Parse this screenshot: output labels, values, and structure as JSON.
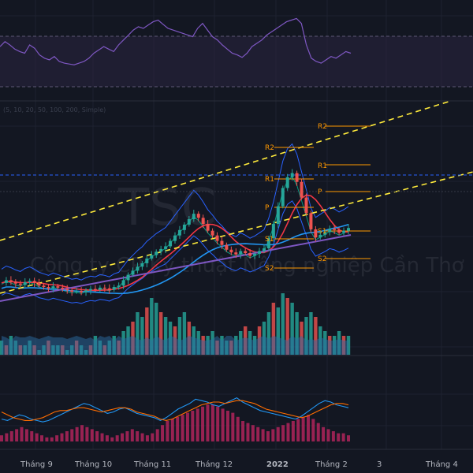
{
  "colors": {
    "background": "#131722",
    "grid": "#1e2230",
    "up": "#26a69a",
    "down": "#ef5350",
    "ma_blue": "#2962ff",
    "ma_teal": "#089981",
    "ma_red": "#f23645",
    "ma_purple": "#7e57c2",
    "trend": "#ffeb3b",
    "pivot": "#ff9800",
    "rsi": "#7e57c2",
    "rsi_band": "#2a2440",
    "macd_hist": "#b0245a",
    "macd_line": "#2196f3",
    "signal_line": "#ff6d00",
    "volume": "#2b6ea3"
  },
  "chart_data": {
    "type": "candlestick",
    "watermark": "TSC",
    "subtitle_watermark": "Công ty CP Kỹ thuật Nông nghiệp Cần Thơ",
    "ma_legend": "(5, 10, 20, 50, 100, 200, Simple)",
    "x_axis_labels": [
      "Tháng 9",
      "Tháng 10",
      "Tháng 11",
      "Tháng 12",
      "2022",
      "Tháng 2",
      "3",
      "Tháng 4"
    ],
    "pivot_labels": [
      "R2",
      "R1",
      "P",
      "S1",
      "S2",
      "R2",
      "R1",
      "P",
      "S1",
      "S2"
    ],
    "price_series": [
      10.2,
      10.6,
      10.4,
      10.1,
      9.9,
      10.3,
      10.5,
      10.2,
      9.8,
      9.6,
      9.4,
      9.7,
      9.5,
      9.3,
      9.1,
      8.9,
      9.0,
      8.8,
      9.1,
      9.3,
      9.2,
      9.5,
      9.4,
      9.2,
      9.6,
      9.8,
      10.6,
      11.4,
      12.0,
      12.6,
      13.1,
      13.8,
      14.3,
      14.8,
      15.2,
      15.6,
      16.4,
      17.2,
      18.0,
      18.8,
      19.6,
      20.4,
      19.8,
      18.9,
      17.9,
      17.2,
      16.4,
      15.8,
      15.1,
      14.7,
      14.4,
      14.9,
      14.6,
      14.2,
      14.5,
      14.9,
      15.3,
      16.8,
      18.9,
      21.5,
      24.2,
      25.8,
      26.4,
      25.1,
      22.8,
      20.5,
      18.1,
      16.9,
      17.3,
      17.7,
      18.2,
      18.0,
      17.6,
      17.9,
      18.3
    ],
    "volume_series": [
      3,
      2,
      4,
      3,
      2,
      2,
      3,
      2,
      1,
      2,
      3,
      2,
      2,
      2,
      1,
      2,
      3,
      2,
      1,
      2,
      4,
      3,
      2,
      3,
      4,
      3,
      5,
      6,
      7,
      9,
      8,
      10,
      12,
      11,
      9,
      8,
      7,
      6,
      8,
      9,
      7,
      6,
      5,
      4,
      4,
      5,
      3,
      4,
      3,
      3,
      4,
      5,
      6,
      5,
      4,
      6,
      7,
      9,
      11,
      10,
      13,
      12,
      11,
      9,
      7,
      8,
      9,
      8,
      6,
      5,
      4,
      4,
      5,
      4,
      4
    ],
    "rsi_series": [
      58,
      64,
      60,
      55,
      52,
      50,
      60,
      56,
      48,
      44,
      42,
      46,
      40,
      38,
      37,
      36,
      38,
      40,
      44,
      50,
      54,
      58,
      55,
      52,
      60,
      66,
      72,
      78,
      82,
      80,
      84,
      88,
      90,
      85,
      80,
      78,
      76,
      74,
      72,
      70,
      80,
      86,
      78,
      70,
      66,
      60,
      55,
      50,
      48,
      45,
      50,
      58,
      62,
      66,
      72,
      76,
      80,
      84,
      88,
      90,
      92,
      86,
      60,
      44,
      40,
      38,
      42,
      46,
      44,
      48,
      52,
      50
    ],
    "macd_series": [
      -0.2,
      -0.3,
      -0.1,
      0.1,
      0.0,
      -0.2,
      -0.3,
      -0.4,
      -0.3,
      -0.1,
      0.1,
      0.3,
      0.5,
      0.7,
      0.9,
      0.8,
      0.6,
      0.4,
      0.2,
      0.3,
      0.5,
      0.6,
      0.4,
      0.2,
      0.1,
      0.0,
      -0.1,
      -0.3,
      -0.1,
      0.2,
      0.5,
      0.7,
      0.9,
      1.2,
      1.1,
      1.0,
      0.8,
      0.7,
      0.9,
      1.1,
      1.3,
      1.0,
      0.8,
      0.6,
      0.4,
      0.3,
      0.2,
      0.1,
      0.0,
      -0.1,
      -0.2,
      0.0,
      0.3,
      0.6,
      0.9,
      1.1,
      1.0,
      0.8,
      0.7,
      0.6
    ],
    "signal_series": [
      0.3,
      0.1,
      -0.1,
      -0.2,
      -0.3,
      -0.3,
      -0.2,
      -0.1,
      0.1,
      0.3,
      0.4,
      0.4,
      0.5,
      0.6,
      0.6,
      0.5,
      0.4,
      0.3,
      0.4,
      0.5,
      0.6,
      0.6,
      0.5,
      0.3,
      0.2,
      0.1,
      0.0,
      -0.2,
      -0.3,
      -0.2,
      0.0,
      0.2,
      0.4,
      0.6,
      0.8,
      0.9,
      1.0,
      1.0,
      0.9,
      1.0,
      1.1,
      1.1,
      1.0,
      0.9,
      0.7,
      0.5,
      0.4,
      0.3,
      0.2,
      0.1,
      0.0,
      -0.1,
      0.0,
      0.2,
      0.4,
      0.6,
      0.8,
      0.9,
      0.9,
      0.8
    ],
    "hist_series": [
      3,
      4,
      5,
      6,
      7,
      6,
      5,
      4,
      3,
      2,
      2,
      3,
      4,
      5,
      6,
      7,
      8,
      7,
      6,
      5,
      4,
      3,
      2,
      3,
      4,
      5,
      6,
      5,
      4,
      3,
      4,
      6,
      8,
      10,
      11,
      12,
      13,
      14,
      15,
      16,
      17,
      18,
      18,
      17,
      16,
      15,
      14,
      12,
      10,
      9,
      8,
      7,
      6,
      5,
      6,
      7,
      8,
      9,
      10,
      11,
      12,
      13,
      11,
      9,
      7,
      6,
      5,
      4,
      4,
      3
    ]
  }
}
